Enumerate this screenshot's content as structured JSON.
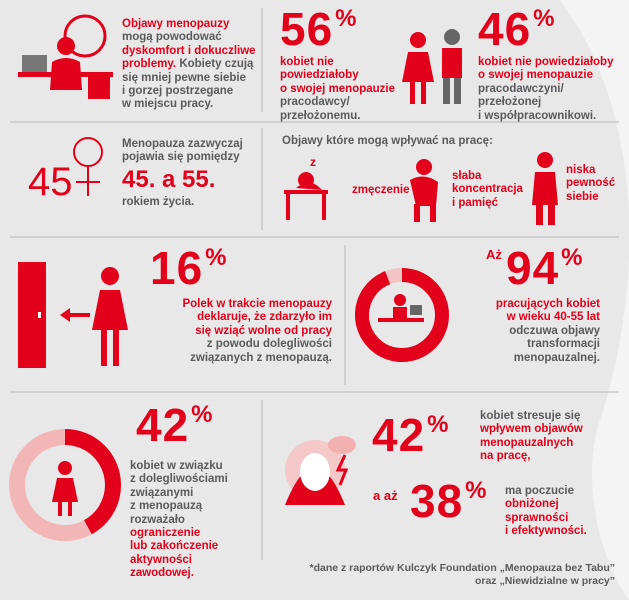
{
  "intro": {
    "lines": [
      [
        {
          "text": "Objawy menopauzy",
          "red": true
        }
      ],
      [
        {
          "text": "mogą powodować"
        }
      ],
      [
        {
          "text": "dyskomfort i dokuczliwe",
          "red": true
        }
      ],
      [
        {
          "text": "problemy.",
          "red": true
        },
        {
          "text": "Kobiety czują"
        }
      ],
      [
        {
          "text": "się mniej pewne siebie"
        }
      ],
      [
        {
          "text": "i gorzej postrzegane"
        }
      ],
      [
        {
          "text": "w miejscu pracy."
        }
      ]
    ]
  },
  "stat_56": {
    "value": 56,
    "unit": "%",
    "lines": [
      [
        {
          "text": "kobiet nie",
          "red": true
        }
      ],
      [
        {
          "text": "powiedziałoby",
          "red": true
        }
      ],
      [
        {
          "text": "o swojej menopauzie",
          "red": true
        }
      ],
      [
        {
          "text": "pracodawcy/"
        }
      ],
      [
        {
          "text": "przełożonemu."
        }
      ]
    ]
  },
  "stat_46": {
    "value": 46,
    "unit": "%",
    "lines": [
      [
        {
          "text": "kobiet nie powiedziałoby",
          "red": true
        }
      ],
      [
        {
          "text": "o swojej menopauzie",
          "red": true
        }
      ],
      [
        {
          "text": "pracodawczyni/"
        }
      ],
      [
        {
          "text": "przełożonej"
        }
      ],
      [
        {
          "text": "i współpracownikowi."
        }
      ]
    ]
  },
  "age": {
    "symbol": "45",
    "intro_lines": [
      [
        {
          "text": "Menopauza zazwyczaj"
        }
      ],
      [
        {
          "text": "pojawia się pomiędzy"
        }
      ]
    ],
    "range": "45. a 55.",
    "outro_lines": [
      [
        {
          "text": "rokiem życia."
        }
      ]
    ]
  },
  "symptoms": {
    "title": "Objawy które mogą wpływać na pracę:",
    "items": [
      {
        "lines": [
          [
            {
              "text": "zmęczenie"
            }
          ]
        ]
      },
      {
        "lines": [
          [
            {
              "text": "słaba"
            }
          ],
          [
            {
              "text": "koncentracja"
            }
          ],
          [
            {
              "text": "i pamięć"
            }
          ]
        ]
      },
      {
        "lines": [
          [
            {
              "text": "niska"
            }
          ],
          [
            {
              "text": "pewność"
            }
          ],
          [
            {
              "text": "siebie"
            }
          ]
        ]
      }
    ]
  },
  "stat_16": {
    "value": 16,
    "unit": "%",
    "lines": [
      [
        {
          "text": "Polek w trakcie menopauzy",
          "red": true
        }
      ],
      [
        {
          "text": "deklaruje, że zdarzyło im",
          "red": true
        }
      ],
      [
        {
          "text": "się wziąć wolne od pracy",
          "red": true
        }
      ],
      [
        {
          "text": "z powodu dolegliwości"
        }
      ],
      [
        {
          "text": "związanych z menopauzą."
        }
      ]
    ]
  },
  "stat_94": {
    "prefix": "Aż",
    "value": 94,
    "unit": "%",
    "lines": [
      [
        {
          "text": "pracujących kobiet",
          "red": true
        }
      ],
      [
        {
          "text": "w wieku 40-55 lat",
          "red": true
        }
      ],
      [
        {
          "text": "odczuwa objawy"
        }
      ],
      [
        {
          "text": "transformacji"
        }
      ],
      [
        {
          "text": "menopauzalnej."
        }
      ]
    ]
  },
  "stat_42a": {
    "value": 42,
    "unit": "%",
    "lines": [
      [
        {
          "text": "kobiet w związku"
        }
      ],
      [
        {
          "text": "z dolegliwościami"
        }
      ],
      [
        {
          "text": "związanymi"
        }
      ],
      [
        {
          "text": "z menopauzą"
        }
      ],
      [
        {
          "text": "rozważało"
        }
      ],
      [
        {
          "text": "ograniczenie",
          "red": true
        }
      ],
      [
        {
          "text": "lub zakończenie",
          "red": true
        }
      ],
      [
        {
          "text": "aktywności",
          "red": true
        }
      ],
      [
        {
          "text": "zawodowej.",
          "red": true
        }
      ]
    ]
  },
  "stat_42b": {
    "value": 42,
    "unit": "%",
    "lines": [
      [
        {
          "text": "kobiet stresuje się"
        }
      ],
      [
        {
          "text": "wpływem objawów",
          "red": true
        }
      ],
      [
        {
          "text": "menopauzalnych",
          "red": true
        }
      ],
      [
        {
          "text": "na pracę,",
          "red": true
        }
      ]
    ]
  },
  "stat_38": {
    "prefix": "a aż",
    "value": 38,
    "unit": "%",
    "lines": [
      [
        {
          "text": "ma poczucie"
        }
      ],
      [
        {
          "text": "obniżonej",
          "red": true
        }
      ],
      [
        {
          "text": "sprawności",
          "red": true
        }
      ],
      [
        {
          "text": "i efektywności.",
          "red": true
        }
      ]
    ]
  },
  "footnote": {
    "lines": [
      [
        {
          "text": "*dane z raportów Kulczyk Foundation „Menopauza bez Tabu”"
        }
      ],
      [
        {
          "text": "oraz „Niewidzialne w pracy”"
        }
      ]
    ]
  }
}
